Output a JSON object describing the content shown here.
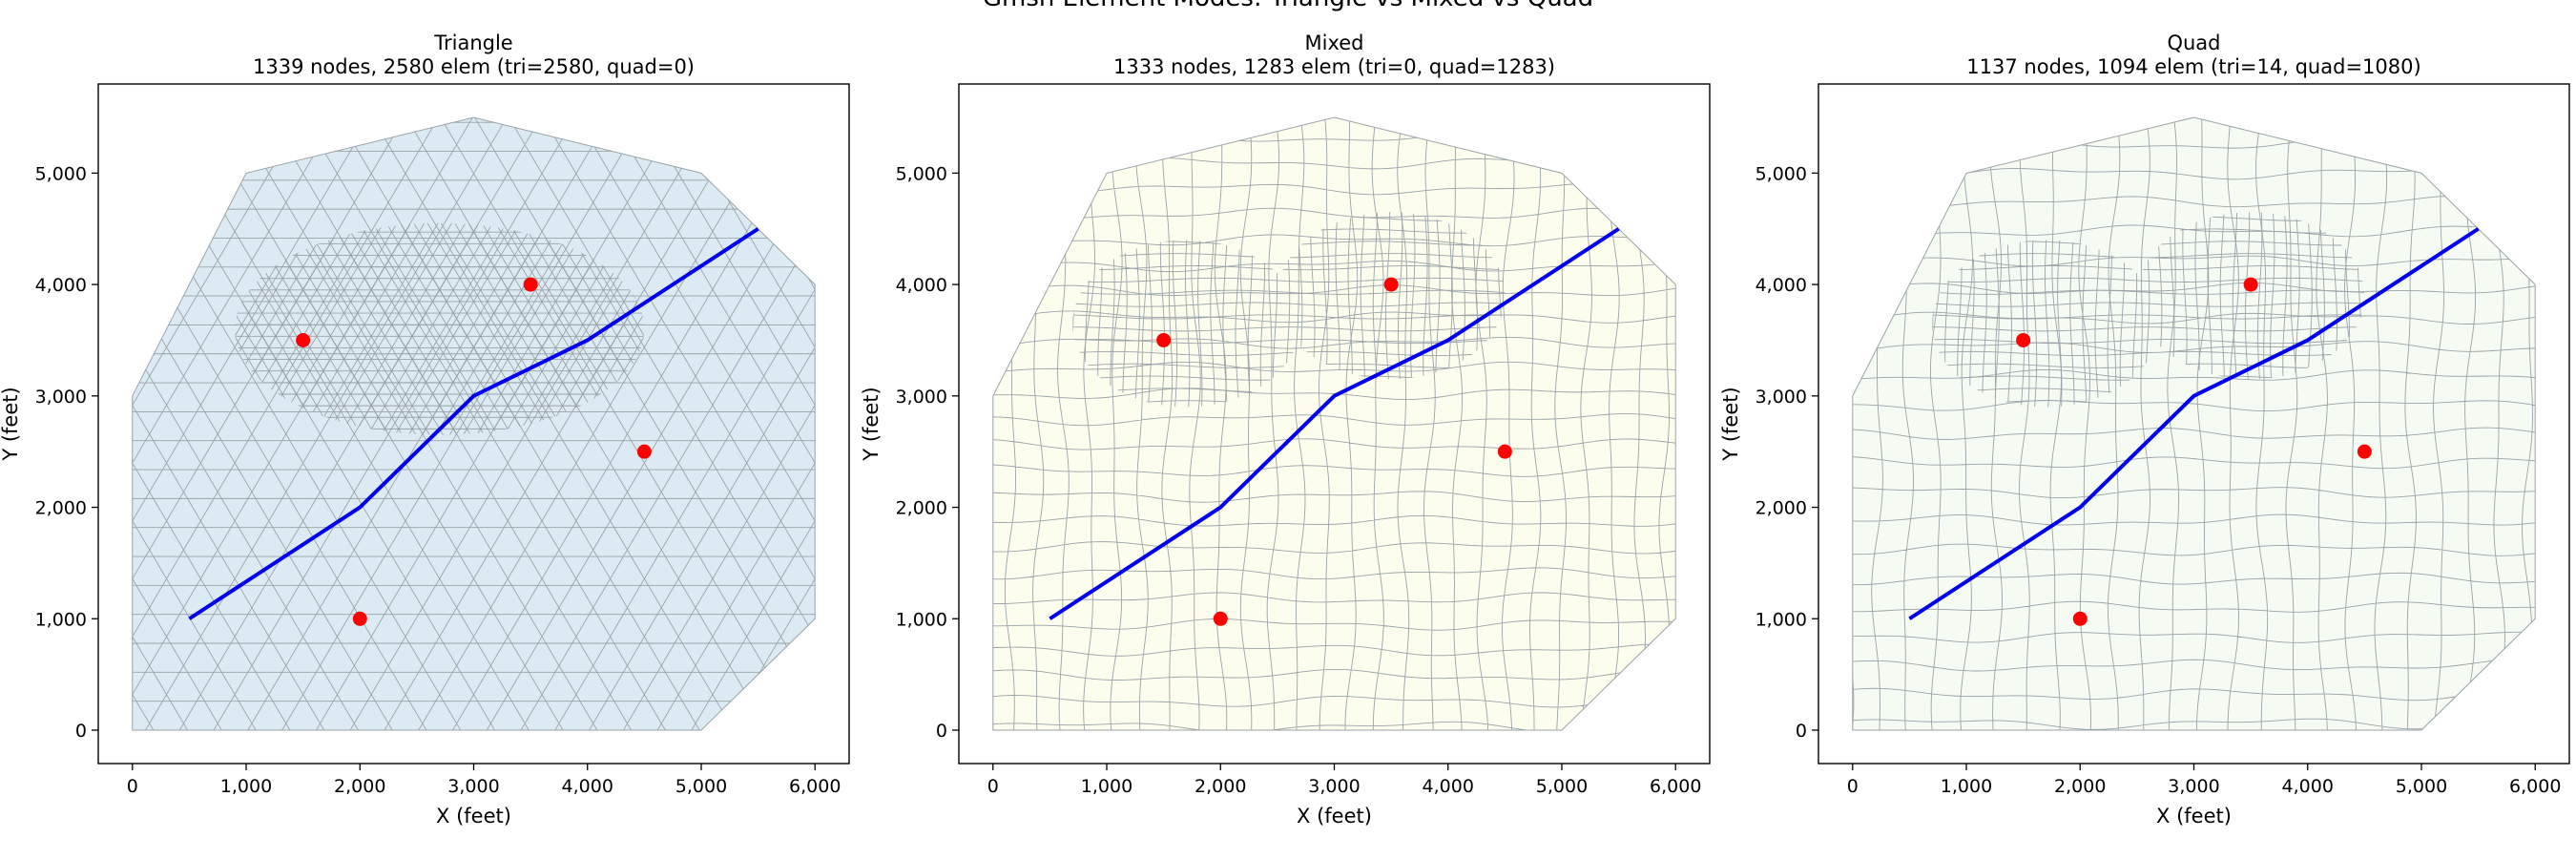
{
  "figure": {
    "suptitle": "Gmsh Element Modes: Triangle vs Mixed vs Quad"
  },
  "chart_data": [
    {
      "type": "scatter",
      "title": "Triangle",
      "subtitle": "1339 nodes, 2580 elem (tri=2580, quad=0)",
      "xlabel": "X (feet)",
      "ylabel": "Y (feet)",
      "xlim": [
        -300,
        6300
      ],
      "ylim": [
        -300,
        5800
      ],
      "xticks": [
        "0",
        "1,000",
        "2,000",
        "3,000",
        "4,000",
        "5,000",
        "6,000"
      ],
      "yticks": [
        "0",
        "1,000",
        "2,000",
        "3,000",
        "4,000",
        "5,000"
      ],
      "grid": false,
      "mesh": "triangle",
      "mesh_fill": "#dcebf3",
      "boundary": [
        [
          0,
          0
        ],
        [
          5000,
          0
        ],
        [
          6000,
          1000
        ],
        [
          6000,
          4000
        ],
        [
          5000,
          5000
        ],
        [
          3000,
          5500
        ],
        [
          1000,
          5000
        ],
        [
          0,
          3000
        ]
      ],
      "line_series": {
        "x": [
          500,
          2000,
          3000,
          4000,
          5500
        ],
        "y": [
          1000,
          2000,
          3000,
          3500,
          4500
        ]
      },
      "points": {
        "x": [
          1500,
          3500,
          4500,
          2000
        ],
        "y": [
          3500,
          4000,
          2500,
          1000
        ]
      }
    },
    {
      "type": "scatter",
      "title": "Mixed",
      "subtitle": "1333 nodes, 1283 elem (tri=0, quad=1283)",
      "xlabel": "X (feet)",
      "ylabel": "Y (feet)",
      "xlim": [
        -300,
        6300
      ],
      "ylim": [
        -300,
        5800
      ],
      "xticks": [
        "0",
        "1,000",
        "2,000",
        "3,000",
        "4,000",
        "5,000",
        "6,000"
      ],
      "yticks": [
        "0",
        "1,000",
        "2,000",
        "3,000",
        "4,000",
        "5,000"
      ],
      "grid": false,
      "mesh": "quad",
      "mesh_fill": "#fdfdee",
      "boundary": [
        [
          0,
          0
        ],
        [
          5000,
          0
        ],
        [
          6000,
          1000
        ],
        [
          6000,
          4000
        ],
        [
          5000,
          5000
        ],
        [
          3000,
          5500
        ],
        [
          1000,
          5000
        ],
        [
          0,
          3000
        ]
      ],
      "line_series": {
        "x": [
          500,
          2000,
          3000,
          4000,
          5500
        ],
        "y": [
          1000,
          2000,
          3000,
          3500,
          4500
        ]
      },
      "points": {
        "x": [
          1500,
          3500,
          4500,
          2000
        ],
        "y": [
          3500,
          4000,
          2500,
          1000
        ]
      }
    },
    {
      "type": "scatter",
      "title": "Quad",
      "subtitle": "1137 nodes, 1094 elem (tri=14, quad=1080)",
      "xlabel": "X (feet)",
      "ylabel": "Y (feet)",
      "xlim": [
        -300,
        6300
      ],
      "ylim": [
        -300,
        5800
      ],
      "xticks": [
        "0",
        "1,000",
        "2,000",
        "3,000",
        "4,000",
        "5,000",
        "6,000"
      ],
      "yticks": [
        "0",
        "1,000",
        "2,000",
        "3,000",
        "4,000",
        "5,000"
      ],
      "grid": false,
      "mesh": "quad",
      "mesh_fill": "#f5faf3",
      "boundary": [
        [
          0,
          0
        ],
        [
          5000,
          0
        ],
        [
          6000,
          1000
        ],
        [
          6000,
          4000
        ],
        [
          5000,
          5000
        ],
        [
          3000,
          5500
        ],
        [
          1000,
          5000
        ],
        [
          0,
          3000
        ]
      ],
      "line_series": {
        "x": [
          500,
          2000,
          3000,
          4000,
          5500
        ],
        "y": [
          1000,
          2000,
          3000,
          3500,
          4500
        ]
      },
      "points": {
        "x": [
          1500,
          3500,
          4500,
          2000
        ],
        "y": [
          3500,
          4000,
          2500,
          1000
        ]
      }
    }
  ],
  "colors": {
    "line": "#0000ee",
    "points": "#ff0000",
    "mesh_edge": "#9aa3a8",
    "axis": "#000000"
  }
}
